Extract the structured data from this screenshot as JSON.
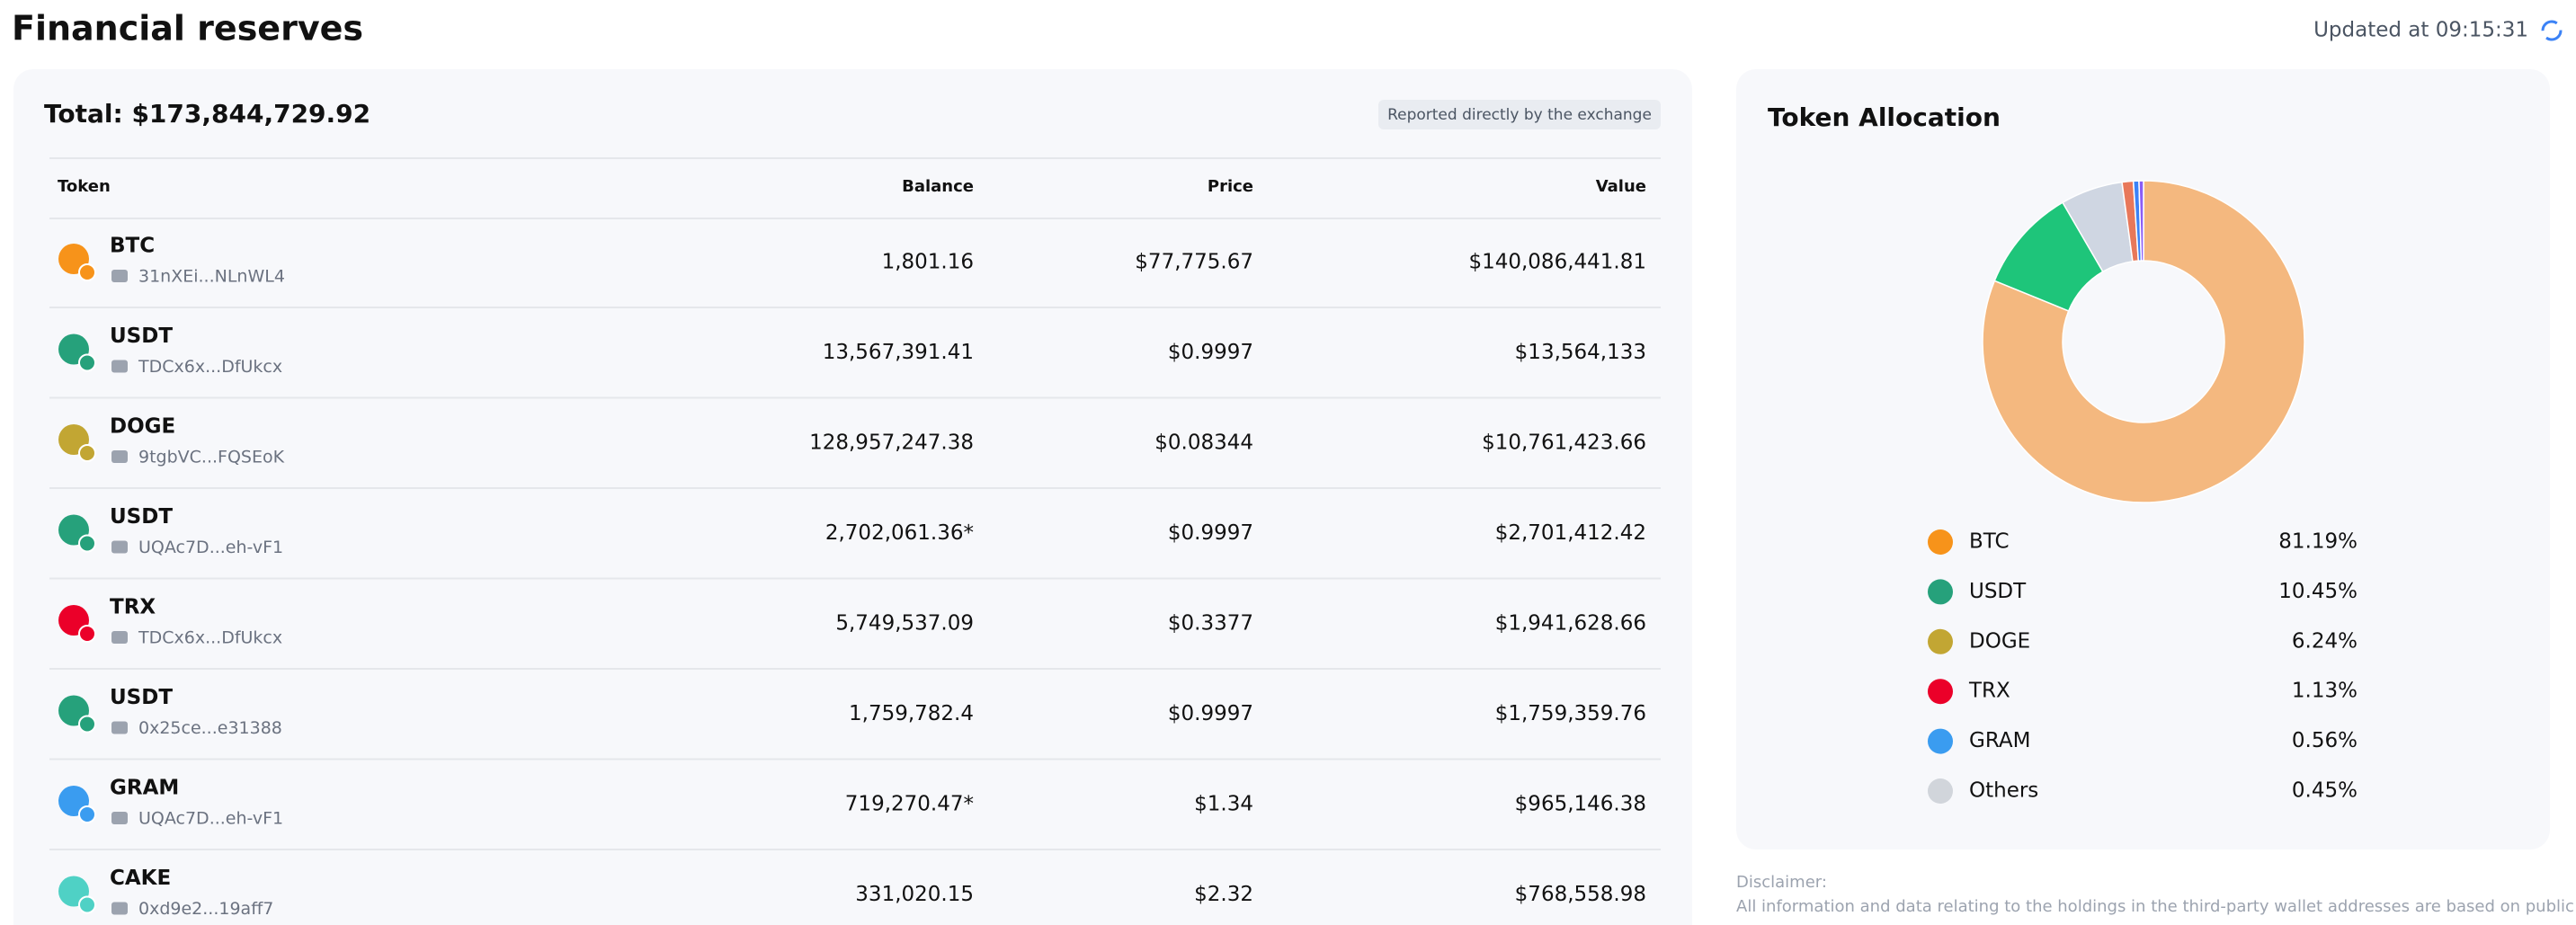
{
  "header": {
    "title": "Financial reserves",
    "updated": "Updated at 09:15:31"
  },
  "reserves": {
    "total": "Total: $173,844,729.92",
    "badge": "Reported directly by the exchange",
    "columns": [
      "Token",
      "Balance",
      "Price",
      "Value"
    ],
    "rows": [
      {
        "token": "BTC",
        "address": "31nXEi...NLnWL4",
        "balance": "1,801.16",
        "price": "$77,775.67",
        "value": "$140,086,441.81"
      },
      {
        "token": "USDT",
        "address": "TDCx6x...DfUkcx",
        "balance": "13,567,391.41",
        "price": "$0.9997",
        "value": "$13,564,133"
      },
      {
        "token": "DOGE",
        "address": "9tgbVC...FQSEoK",
        "balance": "128,957,247.38",
        "price": "$0.08344",
        "value": "$10,761,423.66"
      },
      {
        "token": "USDT",
        "address": "UQAc7D...eh-vF1",
        "balance": "2,702,061.36*",
        "price": "$0.9997",
        "value": "$2,701,412.42"
      },
      {
        "token": "TRX",
        "address": "TDCx6x...DfUkcx",
        "balance": "5,749,537.09",
        "price": "$0.3377",
        "value": "$1,941,628.66"
      },
      {
        "token": "USDT",
        "address": "0x25ce...e31388",
        "balance": "1,759,782.4",
        "price": "$0.9997",
        "value": "$1,759,359.76"
      },
      {
        "token": "GRAM",
        "address": "UQAc7D...eh-vF1",
        "balance": "719,270.47*",
        "price": "$1.34",
        "value": "$965,146.38"
      },
      {
        "token": "CAKE",
        "address": "0xd9e2...19aff7",
        "balance": "331,020.15",
        "price": "$2.32",
        "value": "$768,558.98"
      }
    ]
  },
  "chart_data": {
    "type": "pie",
    "title": "Token Allocation",
    "categories": [
      "BTC",
      "USDT",
      "DOGE",
      "TRX",
      "GRAM",
      "Others"
    ],
    "values": [
      81.19,
      10.45,
      6.24,
      1.13,
      0.56,
      0.45
    ],
    "value_labels": [
      "81.19%",
      "10.45%",
      "6.24%",
      "1.13%",
      "0.56%",
      "0.45%"
    ],
    "colors": [
      "#f4b87f",
      "#1ec57a",
      "#cfd6e2",
      "#e8785a",
      "#3b82f6",
      "#8b5cf6"
    ]
  },
  "disclaimer": {
    "label": "Disclaimer:",
    "text": "All information and data relating to the holdings in the third-party wallet addresses are based on public"
  }
}
